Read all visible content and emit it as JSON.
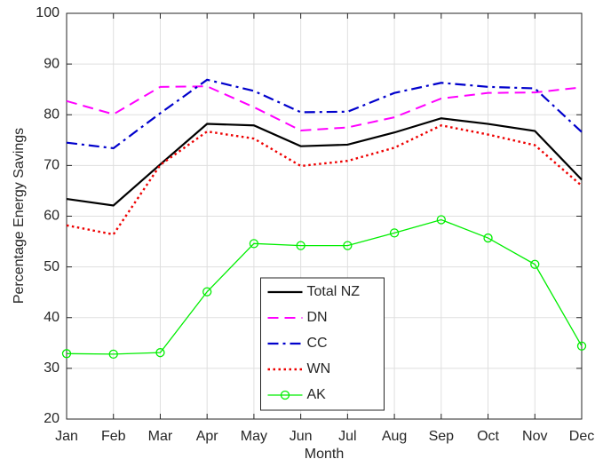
{
  "chart_data": {
    "type": "line",
    "xlabel": "Month",
    "ylabel": "Percentage Energy Savings",
    "categories": [
      "Jan",
      "Feb",
      "Mar",
      "Apr",
      "May",
      "Jun",
      "Jul",
      "Aug",
      "Sep",
      "Oct",
      "Nov",
      "Dec"
    ],
    "series": [
      {
        "name": "Total NZ",
        "color": "#000000",
        "linestyle": "solid",
        "width": 2.2,
        "values": [
          63.4,
          62.1,
          70.2,
          78.2,
          77.9,
          73.8,
          74.1,
          76.5,
          79.3,
          78.2,
          76.8,
          67.2
        ]
      },
      {
        "name": "DN",
        "color": "#ff00ff",
        "linestyle": "dashed",
        "width": 2,
        "values": [
          82.7,
          80.1,
          85.5,
          85.6,
          81.5,
          76.9,
          77.5,
          79.5,
          83.2,
          84.3,
          84.4,
          85.4
        ]
      },
      {
        "name": "CC",
        "color": "#0000cc",
        "linestyle": "dashdot",
        "width": 2.2,
        "values": [
          74.5,
          73.4,
          80.3,
          86.9,
          84.7,
          80.5,
          80.6,
          84.3,
          86.3,
          85.5,
          85.2,
          76.6
        ]
      },
      {
        "name": "WN",
        "color": "#ee0000",
        "linestyle": "dotted",
        "width": 2.4,
        "values": [
          58.2,
          56.4,
          70.1,
          76.7,
          75.3,
          69.9,
          70.9,
          73.5,
          77.9,
          76.1,
          74.0,
          66.0
        ]
      },
      {
        "name": "AK",
        "color": "#00ee00",
        "linestyle": "solid",
        "width": 1.3,
        "marker": "circle",
        "values": [
          32.9,
          32.8,
          33.1,
          45.1,
          54.6,
          54.2,
          54.2,
          56.7,
          59.3,
          55.7,
          50.5,
          34.4
        ]
      }
    ],
    "ylim": [
      20,
      100
    ],
    "yticks": [
      20,
      30,
      40,
      50,
      60,
      70,
      80,
      90,
      100
    ],
    "grid": true,
    "legend": "bottom-center"
  }
}
